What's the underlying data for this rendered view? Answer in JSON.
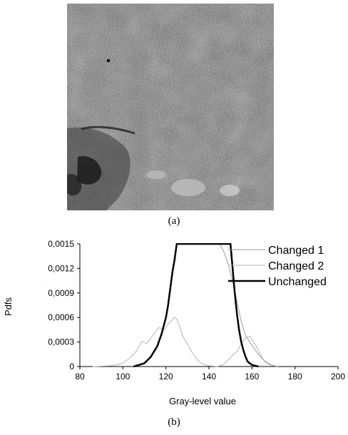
{
  "figure": {
    "caption_a": "(a)",
    "caption_b": "(b)",
    "image_description_icon": "grayscale-satellite-image"
  },
  "chart_data": {
    "type": "line",
    "xlabel": "Gray-level value",
    "ylabel": "Pdfs",
    "xlim": [
      80,
      200
    ],
    "ylim": [
      0,
      0.0015
    ],
    "x_ticks": [
      "80",
      "100",
      "120",
      "140",
      "160",
      "180",
      "200"
    ],
    "y_ticks": [
      "0",
      "0,0003",
      "0,0006",
      "0,0009",
      "0,0012",
      "0,0015"
    ],
    "grid": false,
    "legend_position": "top-right",
    "series": [
      {
        "name": "Changed 1",
        "color": "#9a9a9a",
        "width": 1,
        "points": [
          [
            145,
            0.0015
          ],
          [
            147,
            0.0014
          ],
          [
            149,
            0.00125
          ],
          [
            151,
            0.00105
          ],
          [
            153,
            0.0008
          ],
          [
            155,
            0.00055
          ],
          [
            157,
            0.00038
          ],
          [
            159,
            0.0003
          ],
          [
            161,
            0.00022
          ],
          [
            163,
            0.00015
          ],
          [
            165,
            9e-05
          ],
          [
            167,
            5e-05
          ],
          [
            169,
            2e-05
          ],
          [
            172,
            0.0
          ]
        ]
      },
      {
        "name": "Changed 2",
        "color": "#b4b4b4",
        "width": 1,
        "points": [
          [
            86,
            0.0
          ],
          [
            95,
            1e-05
          ],
          [
            100,
            4e-05
          ],
          [
            103,
            0.0001
          ],
          [
            106,
            0.00018
          ],
          [
            109,
            0.00031
          ],
          [
            111,
            0.00028
          ],
          [
            113,
            0.00035
          ],
          [
            115,
            0.00042
          ],
          [
            117,
            0.00048
          ],
          [
            119,
            0.00044
          ],
          [
            121,
            0.00052
          ],
          [
            123,
            0.00057
          ],
          [
            124,
            0.0006
          ],
          [
            125,
            0.00058
          ],
          [
            126,
            0.00052
          ],
          [
            127,
            0.00044
          ],
          [
            128,
            0.00036
          ],
          [
            130,
            0.00028
          ],
          [
            132,
            0.00018
          ],
          [
            134,
            0.0001
          ],
          [
            136,
            5e-05
          ],
          [
            138,
            2e-05
          ],
          [
            140,
            1e-05
          ],
          [
            144,
            0.0
          ],
          [
            147,
            3e-05
          ],
          [
            149,
            8e-05
          ],
          [
            151,
            0.00014
          ],
          [
            153,
            0.00018
          ],
          [
            155,
            0.00028
          ],
          [
            157,
            0.00035
          ],
          [
            159,
            0.00037
          ],
          [
            160,
            0.00033
          ],
          [
            162,
            0.00025
          ],
          [
            164,
            0.00014
          ],
          [
            166,
            6e-05
          ],
          [
            168,
            2e-05
          ],
          [
            172,
            0.0
          ]
        ]
      },
      {
        "name": "Unchanged",
        "color": "#000000",
        "width": 2.5,
        "points": [
          [
            105,
            0.0
          ],
          [
            110,
            4e-05
          ],
          [
            113,
            0.00012
          ],
          [
            116,
            0.00025
          ],
          [
            118,
            0.0004
          ],
          [
            120,
            0.0006
          ],
          [
            121,
            0.00075
          ],
          [
            122,
            0.00095
          ],
          [
            123,
            0.00115
          ],
          [
            124,
            0.0013
          ],
          [
            125,
            0.0015
          ],
          [
            150,
            0.0015
          ],
          [
            151,
            0.0012
          ],
          [
            152,
            0.0009
          ],
          [
            153,
            0.00065
          ],
          [
            154,
            0.00045
          ],
          [
            155,
            0.0003
          ],
          [
            156,
            0.0002
          ],
          [
            157,
            0.00012
          ],
          [
            158,
            6e-05
          ],
          [
            160,
            2e-05
          ],
          [
            163,
            0.0
          ]
        ]
      }
    ]
  }
}
